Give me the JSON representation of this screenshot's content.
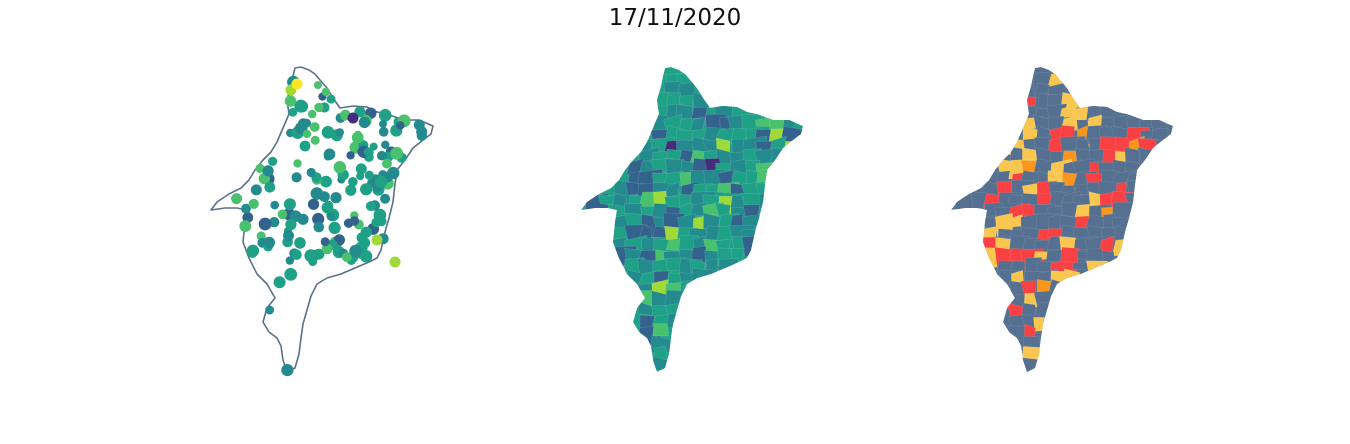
{
  "figure": {
    "title": "17/11/2020"
  },
  "colors": {
    "outline": "#5a7189",
    "viridis_dark": "#472c7a",
    "viridis_blue": "#33638d",
    "viridis_teal": "#238a8d",
    "viridis_green": "#1fa187",
    "viridis_lightgreen": "#4ac16d",
    "viridis_yellowgreen": "#a0da39",
    "viridis_yellow": "#fde725",
    "category_slate": "#557090",
    "category_red": "#f94144",
    "category_orange": "#f8961e",
    "category_yellow": "#f9c74f"
  },
  "maps": [
    {
      "kind": "point-map",
      "legend_shown": false,
      "description_shown": false
    },
    {
      "kind": "choropleth-continuous",
      "colormap": "viridis",
      "legend_shown": false
    },
    {
      "kind": "choropleth-categorical",
      "categories": 4,
      "legend_shown": false
    }
  ]
}
